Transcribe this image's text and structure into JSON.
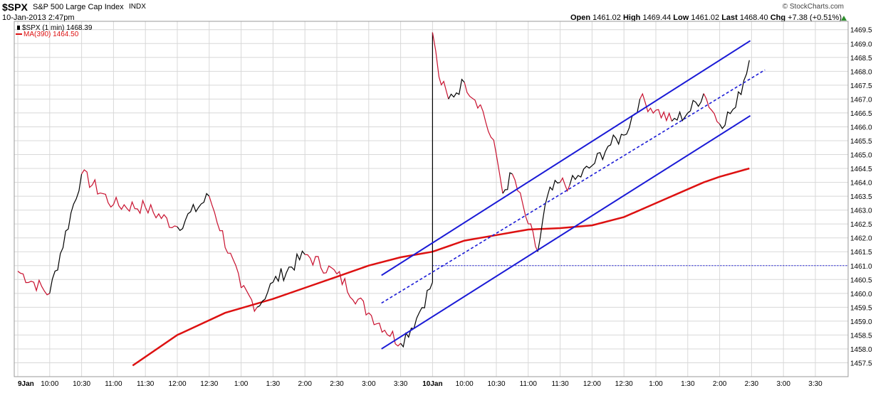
{
  "header": {
    "symbol": "$SPX",
    "name": "S&P 500 Large Cap Index",
    "exchange": "INDX",
    "timestamp": "10-Jan-2013 2:47pm",
    "credit": "© StockCharts.com",
    "open_label": "Open",
    "open": "1461.02",
    "high_label": "High",
    "high": "1469.44",
    "low_label": "Low",
    "low": "1461.02",
    "last_label": "Last",
    "last": "1468.40",
    "chg_label": "Chg",
    "chg": "+7.38 (+0.51%)"
  },
  "legend": {
    "price": "$SPX (1 min) 1468.39",
    "ma": "MA(390) 1464.50"
  },
  "colors": {
    "ma": "#dd1111",
    "channel": "#1a1ad6",
    "bull": "#000000",
    "bear": "#c8102e",
    "grid": "#d8d8d8",
    "accent_up": "#2f8f2f"
  },
  "chart_data": {
    "type": "line",
    "ylim": [
      1457.0,
      1469.8
    ],
    "yticks": [
      "1457.5",
      "1458.0",
      "1458.5",
      "1459.0",
      "1459.5",
      "1460.0",
      "1460.5",
      "1461.0",
      "1461.5",
      "1462.0",
      "1462.5",
      "1463.0",
      "1463.5",
      "1464.0",
      "1464.5",
      "1465.0",
      "1465.5",
      "1466.0",
      "1466.5",
      "1467.0",
      "1467.5",
      "1468.0",
      "1468.5",
      "1469.0",
      "1469.5"
    ],
    "x_labels": [
      "9Jan",
      "10:00",
      "10:30",
      "11:00",
      "11:30",
      "12:00",
      "12:30",
      "1:00",
      "1:30",
      "2:00",
      "2:30",
      "3:00",
      "3:30",
      "10Jan",
      "10:00",
      "10:30",
      "11:00",
      "11:30",
      "12:00",
      "12:30",
      "1:00",
      "1:30",
      "2:00",
      "2:30",
      "3:00",
      "3:30"
    ],
    "x_label_bold": [
      true,
      false,
      false,
      false,
      false,
      false,
      false,
      false,
      false,
      false,
      false,
      false,
      false,
      true,
      false,
      false,
      false,
      false,
      false,
      false,
      false,
      false,
      false,
      false,
      false,
      false
    ],
    "price_series": {
      "name": "$SPX (1 min)",
      "slot": [
        0,
        1,
        2,
        3,
        4,
        5,
        6,
        7,
        7.5,
        8,
        9,
        10,
        11,
        12,
        12.5,
        13,
        13.001,
        13.2,
        13.5,
        14,
        14.5,
        15,
        15.2,
        15.5,
        16,
        16.3,
        16.6,
        17,
        17.3,
        18,
        18.5,
        19,
        19.5,
        20,
        20.5,
        21,
        21.5,
        22,
        22.5,
        22.93
      ],
      "value": [
        1460.8,
        1460.0,
        1464.3,
        1463.2,
        1463.1,
        1462.4,
        1463.5,
        1460.2,
        1459.5,
        1460.4,
        1461.4,
        1460.7,
        1459.3,
        1458.2,
        1459.1,
        1460.4,
        1469.4,
        1467.8,
        1467.0,
        1467.6,
        1466.8,
        1465.0,
        1463.6,
        1464.3,
        1462.5,
        1461.5,
        1463.5,
        1464.0,
        1463.9,
        1464.6,
        1465.3,
        1465.7,
        1467.0,
        1466.6,
        1466.2,
        1466.5,
        1467.2,
        1466.1,
        1466.7,
        1468.4
      ]
    },
    "ma_series": {
      "name": "MA(390)",
      "slot": [
        3.6,
        5,
        6.5,
        8,
        9,
        10,
        11,
        12,
        12.5,
        13,
        14,
        15,
        15.5,
        16,
        17,
        18,
        19,
        20,
        21,
        21.5,
        22,
        22.93
      ],
      "value": [
        1457.4,
        1458.5,
        1459.3,
        1459.8,
        1460.2,
        1460.6,
        1461.0,
        1461.3,
        1461.4,
        1461.5,
        1461.9,
        1462.1,
        1462.2,
        1462.3,
        1462.35,
        1462.45,
        1462.75,
        1463.25,
        1463.75,
        1464.0,
        1464.2,
        1464.5
      ]
    },
    "channel": {
      "upper": [
        [
          11.4,
          1460.65
        ],
        [
          22.96,
          1469.1
        ]
      ],
      "mid": [
        [
          11.4,
          1459.65
        ],
        [
          23.42,
          1468.05
        ]
      ],
      "lower": [
        [
          11.4,
          1458.0
        ],
        [
          22.96,
          1466.4
        ]
      ]
    },
    "reference_line": 1461.0,
    "session_break_slot": 13
  }
}
